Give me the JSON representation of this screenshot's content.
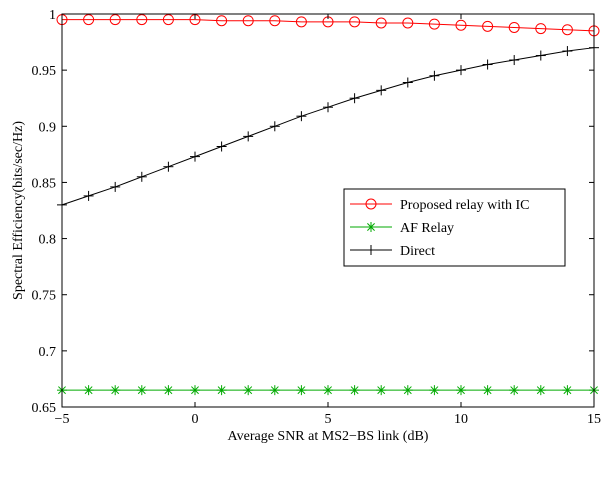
{
  "chart_data": {
    "type": "line",
    "title": "",
    "xlabel": "Average SNR at MS2−BS link (dB)",
    "ylabel": "Spectral Efficiency(bits/sec/Hz)",
    "xlim": [
      -5,
      15
    ],
    "ylim": [
      0.65,
      1
    ],
    "xticks": [
      -5,
      0,
      5,
      10,
      15
    ],
    "xtick_labels": [
      "−5",
      "0",
      "5",
      "10",
      "15"
    ],
    "yticks": [
      0.65,
      0.7,
      0.75,
      0.8,
      0.85,
      0.9,
      0.95,
      1
    ],
    "ytick_labels": [
      "0.65",
      "0.7",
      "0.75",
      "0.8",
      "0.85",
      "0.9",
      "0.95",
      "1"
    ],
    "grid": false,
    "legend_position": "center-right",
    "x": [
      -5,
      -4,
      -3,
      -2,
      -1,
      0,
      1,
      2,
      3,
      4,
      5,
      6,
      7,
      8,
      9,
      10,
      11,
      12,
      13,
      14,
      15
    ],
    "series": [
      {
        "name": "Proposed relay with IC",
        "color": "#ff0000",
        "marker": "circle",
        "values": [
          0.995,
          0.995,
          0.995,
          0.995,
          0.995,
          0.995,
          0.994,
          0.994,
          0.994,
          0.993,
          0.993,
          0.993,
          0.992,
          0.992,
          0.991,
          0.99,
          0.989,
          0.988,
          0.987,
          0.986,
          0.985
        ]
      },
      {
        "name": "AF Relay",
        "color": "#00aa00",
        "marker": "star",
        "values": [
          0.665,
          0.665,
          0.665,
          0.665,
          0.665,
          0.665,
          0.665,
          0.665,
          0.665,
          0.665,
          0.665,
          0.665,
          0.665,
          0.665,
          0.665,
          0.665,
          0.665,
          0.665,
          0.665,
          0.665,
          0.665
        ]
      },
      {
        "name": "Direct",
        "color": "#000000",
        "marker": "plus",
        "values": [
          0.83,
          0.838,
          0.846,
          0.855,
          0.864,
          0.873,
          0.882,
          0.891,
          0.9,
          0.909,
          0.917,
          0.925,
          0.932,
          0.939,
          0.945,
          0.95,
          0.955,
          0.959,
          0.963,
          0.967,
          0.97
        ]
      }
    ]
  }
}
